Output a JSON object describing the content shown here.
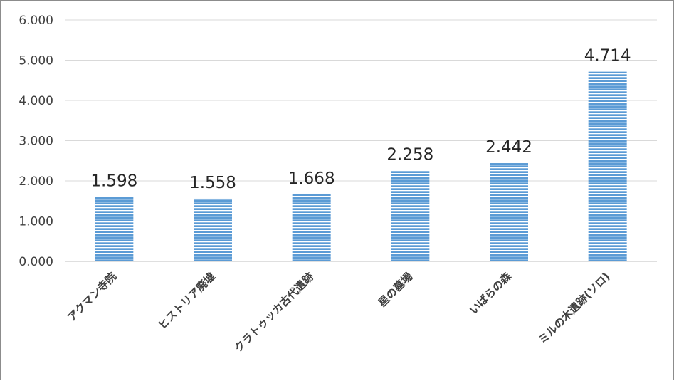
{
  "chart_data": {
    "type": "bar",
    "categories": [
      "アクマン寺院",
      "ヒストリア廃墟",
      "クラトゥッカ古代遺跡",
      "星の墓場",
      "いばらの森",
      "ミルの木遺跡(ソロ)"
    ],
    "values": [
      1.598,
      1.558,
      1.668,
      2.258,
      2.442,
      4.714
    ],
    "data_labels": [
      "1.598",
      "1.558",
      "1.668",
      "2.258",
      "2.442",
      "4.714"
    ],
    "y_ticks": [
      "0.000",
      "1.000",
      "2.000",
      "3.000",
      "4.000",
      "5.000",
      "6.000"
    ],
    "ylim": [
      0,
      6
    ],
    "grid": true,
    "bar_color": "#5b9bd5",
    "bar_stripe_color": "#ffffff",
    "title": "",
    "xlabel": "",
    "ylabel": ""
  }
}
